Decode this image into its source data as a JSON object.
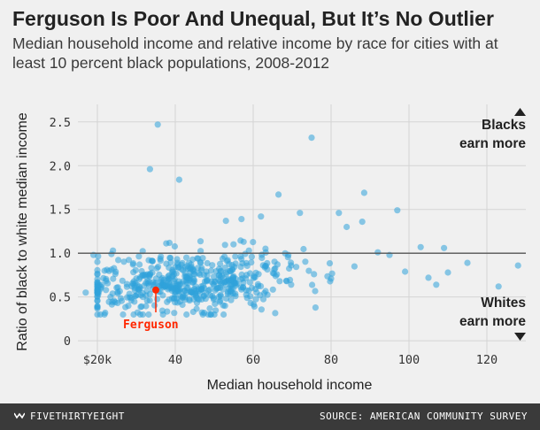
{
  "header": {
    "title": "Ferguson Is Poor And Unequal, But It’s No Outlier",
    "subtitle": "Median household income and relative income by race for cities with at least 10 percent black populations, 2008-2012"
  },
  "annotations": {
    "blacks_line1": "Blacks",
    "blacks_line2": "earn more",
    "whites_line1": "Whites",
    "whites_line2": "earn more",
    "ferguson": "Ferguson"
  },
  "footer": {
    "brand": "FIVETHIRTYEIGHT",
    "source": "SOURCE: AMERICAN COMMUNITY SURVEY"
  },
  "colors": {
    "points": "#30a2da",
    "highlight": "#ff2700",
    "background": "#f0f0f0",
    "footer": "#3a3a3a"
  },
  "chart_data": {
    "type": "scatter",
    "title": "Ferguson Is Poor And Unequal, But It’s No Outlier",
    "subtitle": "Median household income and relative income by race for cities with at least 10 percent black populations, 2008-2012",
    "xlabel": "Median household income",
    "ylabel": "Ratio of black to white median income",
    "xlim": [
      15,
      130
    ],
    "ylim": [
      -0.15,
      2.7
    ],
    "x_ticks": [
      20,
      40,
      60,
      80,
      100,
      120
    ],
    "x_tick_labels": [
      "$20k",
      "40",
      "60",
      "80",
      "100",
      "120"
    ],
    "y_ticks": [
      0,
      0.5,
      1.0,
      1.5,
      2.0,
      2.5
    ],
    "y_tick_labels": [
      "0",
      "0.5",
      "1.0",
      "1.5",
      "2.0",
      "2.5"
    ],
    "reference_line": 1.0,
    "grid": true,
    "highlight": {
      "label": "Ferguson",
      "x": 35,
      "y": 0.58
    },
    "outliers": [
      [
        35.5,
        2.47
      ],
      [
        75,
        2.32
      ],
      [
        33.5,
        1.96
      ],
      [
        41,
        1.84
      ],
      [
        88.5,
        1.69
      ],
      [
        66.5,
        1.67
      ],
      [
        97,
        1.49
      ],
      [
        103,
        1.07
      ],
      [
        109,
        1.06
      ],
      [
        115,
        0.89
      ],
      [
        128,
        0.86
      ],
      [
        123,
        0.62
      ],
      [
        105,
        0.72
      ],
      [
        107,
        0.64
      ],
      [
        110,
        0.78
      ],
      [
        92,
        1.01
      ],
      [
        95,
        0.98
      ],
      [
        84,
        1.3
      ],
      [
        82,
        1.46
      ],
      [
        88,
        1.36
      ],
      [
        72,
        1.46
      ],
      [
        57,
        1.39
      ],
      [
        53,
        1.37
      ],
      [
        62,
        1.42
      ],
      [
        17,
        0.55
      ],
      [
        22,
        0.32
      ],
      [
        24,
        1.03
      ],
      [
        19,
        0.98
      ],
      [
        80,
        0.71
      ],
      [
        86,
        0.85
      ],
      [
        99,
        0.79
      ],
      [
        76,
        0.38
      ]
    ],
    "cluster": {
      "n": 560,
      "x_mean": 43,
      "x_sd": 12,
      "x_min": 20,
      "x_max": 100,
      "y_mean": 0.66,
      "y_sd": 0.17,
      "y_min": 0.3,
      "y_max": 1.35
    }
  }
}
